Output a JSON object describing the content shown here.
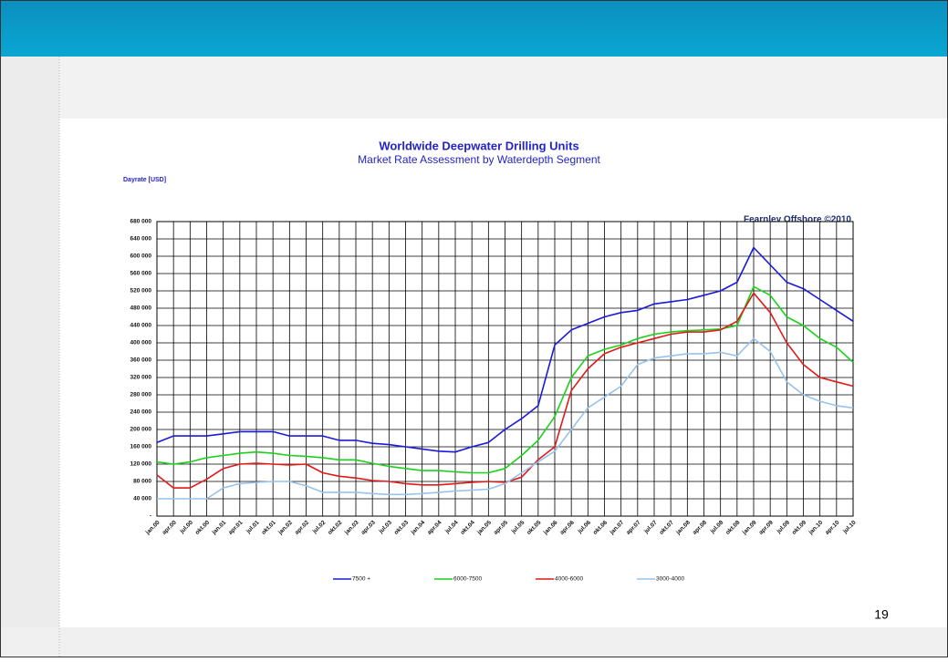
{
  "chart_data": {
    "type": "line",
    "title": "Worldwide Deepwater Drilling Units",
    "subtitle": "Market Rate Assessment by Waterdepth Segment",
    "y_label": "Dayrate [USD]",
    "annotation": "Fearnley Offshore ©2010",
    "categories": [
      "jan.00",
      "apr.00",
      "jul.00",
      "okt.00",
      "jan.01",
      "apr.01",
      "jul.01",
      "okt.01",
      "jan.02",
      "apr.02",
      "jul.02",
      "okt.02",
      "jan.03",
      "apr.03",
      "jul.03",
      "okt.03",
      "jan.04",
      "apr.04",
      "jul.04",
      "okt.04",
      "jan.05",
      "apr.05",
      "jul.05",
      "okt.05",
      "jan.06",
      "apr.06",
      "jul.06",
      "okt.06",
      "jan.07",
      "apr.07",
      "jul.07",
      "okt.07",
      "jan.08",
      "apr.08",
      "jul.08",
      "okt.08",
      "jan.09",
      "apr.09",
      "jul.09",
      "okt.09",
      "jan.10",
      "apr.10",
      "jul.10"
    ],
    "series": [
      {
        "name": "7500 +",
        "color": "#1a1adc",
        "values": [
          170000,
          185000,
          185000,
          185000,
          190000,
          195000,
          195000,
          195000,
          185000,
          185000,
          185000,
          175000,
          175000,
          168000,
          165000,
          160000,
          155000,
          150000,
          148000,
          160000,
          170000,
          200000,
          225000,
          255000,
          395000,
          430000,
          445000,
          460000,
          470000,
          475000,
          490000,
          495000,
          500000,
          510000,
          520000,
          540000,
          620000,
          580000,
          540000,
          525000,
          500000,
          475000,
          450000
        ]
      },
      {
        "name": "6000-7500",
        "color": "#19d219",
        "values": [
          125000,
          120000,
          125000,
          135000,
          140000,
          145000,
          148000,
          145000,
          140000,
          138000,
          135000,
          130000,
          130000,
          122000,
          115000,
          110000,
          105000,
          105000,
          102000,
          100000,
          100000,
          110000,
          140000,
          175000,
          230000,
          320000,
          370000,
          385000,
          395000,
          410000,
          420000,
          425000,
          428000,
          430000,
          432000,
          440000,
          530000,
          510000,
          460000,
          440000,
          410000,
          390000,
          355000
        ]
      },
      {
        "name": "4000-6000",
        "color": "#e11919",
        "values": [
          95000,
          65000,
          65000,
          85000,
          110000,
          120000,
          122000,
          120000,
          118000,
          120000,
          100000,
          92000,
          88000,
          82000,
          80000,
          75000,
          72000,
          72000,
          75000,
          78000,
          80000,
          78000,
          90000,
          130000,
          160000,
          290000,
          340000,
          375000,
          390000,
          400000,
          410000,
          420000,
          425000,
          425000,
          430000,
          450000,
          515000,
          470000,
          400000,
          350000,
          320000,
          310000,
          300000
        ]
      },
      {
        "name": "3000-4000",
        "color": "#96c3ec",
        "values": [
          40000,
          40000,
          40000,
          40000,
          65000,
          75000,
          78000,
          80000,
          80000,
          70000,
          55000,
          55000,
          55000,
          52000,
          50000,
          50000,
          52000,
          55000,
          58000,
          60000,
          62000,
          75000,
          100000,
          125000,
          150000,
          200000,
          250000,
          275000,
          300000,
          350000,
          365000,
          370000,
          375000,
          375000,
          378000,
          370000,
          410000,
          380000,
          310000,
          280000,
          265000,
          255000,
          250000
        ]
      }
    ],
    "ylim": [
      0,
      680000
    ],
    "yticks": [
      {
        "value": 0,
        "label": "-"
      },
      {
        "value": 40000,
        "label": "40 000"
      },
      {
        "value": 80000,
        "label": "80 000"
      },
      {
        "value": 120000,
        "label": "120 000"
      },
      {
        "value": 160000,
        "label": "160 000"
      },
      {
        "value": 200000,
        "label": "200 000"
      },
      {
        "value": 240000,
        "label": "240 000"
      },
      {
        "value": 280000,
        "label": "280 000"
      },
      {
        "value": 320000,
        "label": "320 000"
      },
      {
        "value": 360000,
        "label": "360 000"
      },
      {
        "value": 400000,
        "label": "400 000"
      },
      {
        "value": 440000,
        "label": "440 000"
      },
      {
        "value": 480000,
        "label": "480 000"
      },
      {
        "value": 520000,
        "label": "520 000"
      },
      {
        "value": 560000,
        "label": "560 000"
      },
      {
        "value": 600000,
        "label": "600 000"
      },
      {
        "value": 640000,
        "label": "640 000"
      },
      {
        "value": 680000,
        "label": "680 000"
      }
    ],
    "grid": true,
    "legend": "bottom"
  },
  "page_number": "19"
}
